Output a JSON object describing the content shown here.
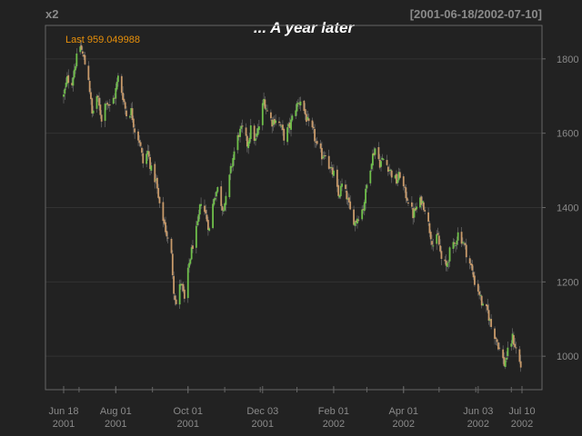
{
  "chart_data": {
    "type": "ohlc",
    "series_name": "x2",
    "date_range": "[2001-06-18/2002-07-10]",
    "title": "... A year later",
    "last_label": "Last 959.049988",
    "ylim": [
      910,
      1890
    ],
    "yticks": [
      1000,
      1200,
      1400,
      1600,
      1800
    ],
    "xticks": [
      {
        "date": "2001-06-18",
        "line1": "Jun 18",
        "line2": "2001"
      },
      {
        "date": "2001-08-01",
        "line1": "Aug 01",
        "line2": "2001"
      },
      {
        "date": "2001-10-01",
        "line1": "Oct 01",
        "line2": "2001"
      },
      {
        "date": "2001-12-03",
        "line1": "Dec 03",
        "line2": "2001"
      },
      {
        "date": "2002-02-01",
        "line1": "Feb 01",
        "line2": "2002"
      },
      {
        "date": "2002-04-01",
        "line1": "Apr 01",
        "line2": "2002"
      },
      {
        "date": "2002-06-03",
        "line1": "Jun 03",
        "line2": "2002"
      },
      {
        "date": "2002-07-10",
        "line1": "Jul 10",
        "line2": "2002"
      }
    ],
    "x_start": "2001-06-18",
    "x_end": "2002-07-10",
    "close_path": [
      [
        "2001-06-18",
        1700
      ],
      [
        "2001-06-21",
        1745
      ],
      [
        "2001-06-25",
        1740
      ],
      [
        "2001-06-28",
        1790
      ],
      [
        "2001-07-02",
        1835
      ],
      [
        "2001-07-05",
        1800
      ],
      [
        "2001-07-09",
        1750
      ],
      [
        "2001-07-12",
        1650
      ],
      [
        "2001-07-16",
        1700
      ],
      [
        "2001-07-20",
        1640
      ],
      [
        "2001-07-24",
        1690
      ],
      [
        "2001-07-27",
        1670
      ],
      [
        "2001-07-31",
        1700
      ],
      [
        "2001-08-03",
        1750
      ],
      [
        "2001-08-07",
        1700
      ],
      [
        "2001-08-10",
        1650
      ],
      [
        "2001-08-14",
        1660
      ],
      [
        "2001-08-17",
        1610
      ],
      [
        "2001-08-21",
        1580
      ],
      [
        "2001-08-24",
        1520
      ],
      [
        "2001-08-28",
        1550
      ],
      [
        "2001-08-31",
        1500
      ],
      [
        "2001-09-04",
        1470
      ],
      [
        "2001-09-07",
        1400
      ],
      [
        "2001-09-10",
        1370
      ],
      [
        "2001-09-17",
        1270
      ],
      [
        "2001-09-19",
        1180
      ],
      [
        "2001-09-21",
        1140
      ],
      [
        "2001-09-25",
        1200
      ],
      [
        "2001-09-28",
        1150
      ],
      [
        "2001-10-02",
        1250
      ],
      [
        "2001-10-05",
        1300
      ],
      [
        "2001-10-09",
        1350
      ],
      [
        "2001-10-12",
        1420
      ],
      [
        "2001-10-16",
        1380
      ],
      [
        "2001-10-19",
        1340
      ],
      [
        "2001-10-23",
        1430
      ],
      [
        "2001-10-26",
        1450
      ],
      [
        "2001-10-30",
        1400
      ],
      [
        "2001-11-02",
        1420
      ],
      [
        "2001-11-06",
        1500
      ],
      [
        "2001-11-09",
        1550
      ],
      [
        "2001-11-13",
        1600
      ],
      [
        "2001-11-16",
        1610
      ],
      [
        "2001-11-20",
        1570
      ],
      [
        "2001-11-23",
        1610
      ],
      [
        "2001-11-27",
        1580
      ],
      [
        "2001-11-30",
        1620
      ],
      [
        "2001-12-04",
        1690
      ],
      [
        "2001-12-07",
        1660
      ],
      [
        "2001-12-11",
        1630
      ],
      [
        "2001-12-14",
        1640
      ],
      [
        "2001-12-18",
        1620
      ],
      [
        "2001-12-21",
        1590
      ],
      [
        "2001-12-26",
        1620
      ],
      [
        "2001-12-31",
        1670
      ],
      [
        "2002-01-04",
        1690
      ],
      [
        "2002-01-08",
        1650
      ],
      [
        "2002-01-11",
        1620
      ],
      [
        "2002-01-15",
        1600
      ],
      [
        "2002-01-18",
        1560
      ],
      [
        "2002-01-22",
        1540
      ],
      [
        "2002-01-25",
        1550
      ],
      [
        "2002-01-29",
        1500
      ],
      [
        "2002-02-01",
        1490
      ],
      [
        "2002-02-05",
        1430
      ],
      [
        "2002-02-08",
        1460
      ],
      [
        "2002-02-12",
        1430
      ],
      [
        "2002-02-15",
        1390
      ],
      [
        "2002-02-19",
        1360
      ],
      [
        "2002-02-22",
        1380
      ],
      [
        "2002-02-26",
        1400
      ],
      [
        "2002-03-01",
        1460
      ],
      [
        "2002-03-05",
        1530
      ],
      [
        "2002-03-08",
        1560
      ],
      [
        "2002-03-12",
        1520
      ],
      [
        "2002-03-15",
        1530
      ],
      [
        "2002-03-19",
        1510
      ],
      [
        "2002-03-22",
        1490
      ],
      [
        "2002-03-26",
        1470
      ],
      [
        "2002-03-29",
        1490
      ],
      [
        "2002-04-02",
        1440
      ],
      [
        "2002-04-05",
        1420
      ],
      [
        "2002-04-09",
        1380
      ],
      [
        "2002-04-12",
        1400
      ],
      [
        "2002-04-16",
        1420
      ],
      [
        "2002-04-19",
        1400
      ],
      [
        "2002-04-23",
        1340
      ],
      [
        "2002-04-26",
        1300
      ],
      [
        "2002-04-30",
        1320
      ],
      [
        "2002-05-03",
        1260
      ],
      [
        "2002-05-07",
        1240
      ],
      [
        "2002-05-10",
        1280
      ],
      [
        "2002-05-14",
        1300
      ],
      [
        "2002-05-17",
        1330
      ],
      [
        "2002-05-21",
        1310
      ],
      [
        "2002-05-24",
        1280
      ],
      [
        "2002-05-28",
        1240
      ],
      [
        "2002-05-31",
        1200
      ],
      [
        "2002-06-04",
        1170
      ],
      [
        "2002-06-07",
        1130
      ],
      [
        "2002-06-11",
        1120
      ],
      [
        "2002-06-14",
        1080
      ],
      [
        "2002-06-18",
        1050
      ],
      [
        "2002-06-21",
        1020
      ],
      [
        "2002-06-25",
        980
      ],
      [
        "2002-06-28",
        1010
      ],
      [
        "2002-07-02",
        1050
      ],
      [
        "2002-07-05",
        1020
      ],
      [
        "2002-07-10",
        959.049988
      ]
    ],
    "colors": {
      "background": "#222222",
      "frame": "#666666",
      "grid": "#333333",
      "text": "#8a8a8a",
      "up": "#6fbf4a",
      "down": "#c89a6a",
      "title": "#ffffff",
      "last": "#e8900a"
    }
  }
}
